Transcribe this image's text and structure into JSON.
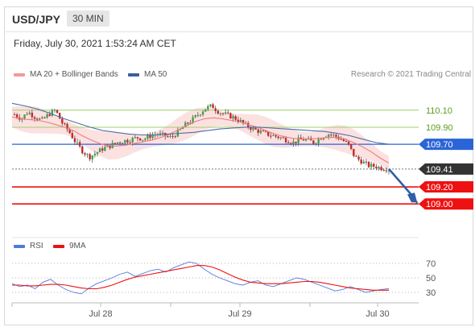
{
  "header": {
    "pair": "USD/JPY",
    "timeframe": "30 MIN"
  },
  "timestamp": "Friday, July 30, 2021 1:53:24 AM CET",
  "legend": {
    "bb_label": "MA 20 + Bollinger Bands",
    "ma50_label": "MA 50",
    "credit": "Research © 2021 Trading Central",
    "rsi_label": "RSI",
    "rsi_ma_label": "9MA"
  },
  "colors": {
    "bb_band": "#f9c8c8",
    "ma20": "#ef7c7c",
    "ma50": "#4a6fa5",
    "resistance": "#9fcf6a",
    "pivot": "#2a64d6",
    "support": "#ee1111",
    "last": "#333333",
    "rsi": "#4f7bd8",
    "rsi_ma": "#ee1111",
    "bull": "#43a047",
    "bear": "#c62828",
    "arrow": "#2f5ea8"
  },
  "chart_data": [
    {
      "type": "candlestick",
      "ylim": [
        108.7,
        110.4
      ],
      "x_ticks": [
        "Jul 28",
        "Jul 29",
        "Jul 30"
      ],
      "levels": [
        {
          "value": 110.1,
          "label": "110.10",
          "kind": "resistance"
        },
        {
          "value": 109.9,
          "label": "109.90",
          "kind": "resistance"
        },
        {
          "value": 109.7,
          "label": "109.70",
          "kind": "pivot"
        },
        {
          "value": 109.41,
          "label": "109.41",
          "kind": "last"
        },
        {
          "value": 109.2,
          "label": "109.20",
          "kind": "support"
        },
        {
          "value": 109.0,
          "label": "109.00",
          "kind": "support"
        }
      ],
      "close_path": [
        110.05,
        110.0,
        110.08,
        110.02,
        109.98,
        110.05,
        110.1,
        109.95,
        109.85,
        109.72,
        109.62,
        109.55,
        109.6,
        109.65,
        109.68,
        109.72,
        109.74,
        109.75,
        109.78,
        109.76,
        109.8,
        109.82,
        109.8,
        109.78,
        109.84,
        109.92,
        109.98,
        110.05,
        110.12,
        110.15,
        110.08,
        110.05,
        110.02,
        109.98,
        109.92,
        109.88,
        109.85,
        109.82,
        109.8,
        109.78,
        109.75,
        109.72,
        109.76,
        109.75,
        109.72,
        109.78,
        109.82,
        109.8,
        109.76,
        109.7,
        109.55,
        109.5,
        109.45,
        109.44,
        109.42,
        109.41
      ],
      "ma20": [
        110.02,
        110.0,
        109.99,
        109.98,
        109.96,
        109.93,
        109.9,
        109.86,
        109.8,
        109.75,
        109.71,
        109.68,
        109.68,
        109.69,
        109.71,
        109.73,
        109.75,
        109.78,
        109.82,
        109.87,
        109.92,
        109.97,
        110.0,
        110.01,
        110.0,
        109.98,
        109.96,
        109.93,
        109.9,
        109.86,
        109.82,
        109.79,
        109.77,
        109.76,
        109.76,
        109.77,
        109.78,
        109.78,
        109.76,
        109.72,
        109.67,
        109.61,
        109.54,
        109.48
      ],
      "ma50": [
        110.18,
        110.15,
        110.11,
        110.06,
        110.0,
        109.95,
        109.9,
        109.86,
        109.84,
        109.82,
        109.81,
        109.81,
        109.82,
        109.83,
        109.84,
        109.86,
        109.88,
        109.89,
        109.9,
        109.9,
        109.89,
        109.88,
        109.87,
        109.86,
        109.85,
        109.83,
        109.8,
        109.76,
        109.72,
        109.7
      ],
      "forecast": {
        "from": 109.41,
        "to": 109.0
      }
    },
    {
      "type": "line",
      "series": [
        {
          "name": "RSI",
          "values": [
            42,
            38,
            40,
            35,
            44,
            48,
            40,
            34,
            30,
            28,
            36,
            42,
            46,
            50,
            55,
            58,
            52,
            56,
            60,
            62,
            58,
            64,
            68,
            72,
            70,
            62,
            55,
            50,
            46,
            42,
            40,
            44,
            46,
            40,
            38,
            42,
            46,
            50,
            48,
            44,
            40,
            36,
            32,
            34,
            38,
            34,
            30,
            32,
            34,
            35
          ]
        },
        {
          "name": "9MA",
          "values": [
            40,
            40,
            39,
            39,
            40,
            41,
            41,
            40,
            38,
            36,
            35,
            35,
            37,
            40,
            44,
            48,
            51,
            53,
            55,
            57,
            59,
            61,
            63,
            65,
            67,
            67,
            65,
            61,
            56,
            51,
            47,
            44,
            43,
            42,
            42,
            42,
            43,
            44,
            45,
            45,
            44,
            42,
            40,
            38,
            36,
            35,
            34,
            33,
            33,
            33
          ]
        }
      ],
      "ylim": [
        20,
        80
      ],
      "y_ticks": [
        70,
        50,
        30
      ]
    }
  ]
}
